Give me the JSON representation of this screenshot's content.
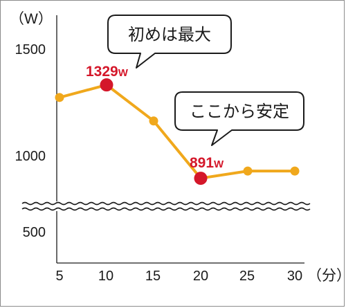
{
  "chart_data": {
    "type": "line",
    "y_unit": "（W）",
    "x_unit": "（分）",
    "x": [
      5,
      10,
      15,
      20,
      25,
      30
    ],
    "y": [
      1270,
      1329,
      1160,
      891,
      925,
      925
    ],
    "xticks": [
      "5",
      "10",
      "15",
      "20",
      "25",
      "30"
    ],
    "yticks": [
      {
        "value": 1500,
        "label": "1500"
      },
      {
        "value": 1000,
        "label": "1000"
      },
      {
        "value": 500,
        "label": "500"
      }
    ],
    "axis_break": true,
    "line_color": "#f0a81c",
    "highlight_color": "#d4172a",
    "highlights": [
      {
        "x": 10,
        "value": "1329",
        "unit": "W"
      },
      {
        "x": 20,
        "value": "891",
        "unit": "W"
      }
    ],
    "callouts": [
      {
        "x": 10,
        "text": "初めは最大"
      },
      {
        "x": 20,
        "text": "ここから安定"
      }
    ]
  }
}
